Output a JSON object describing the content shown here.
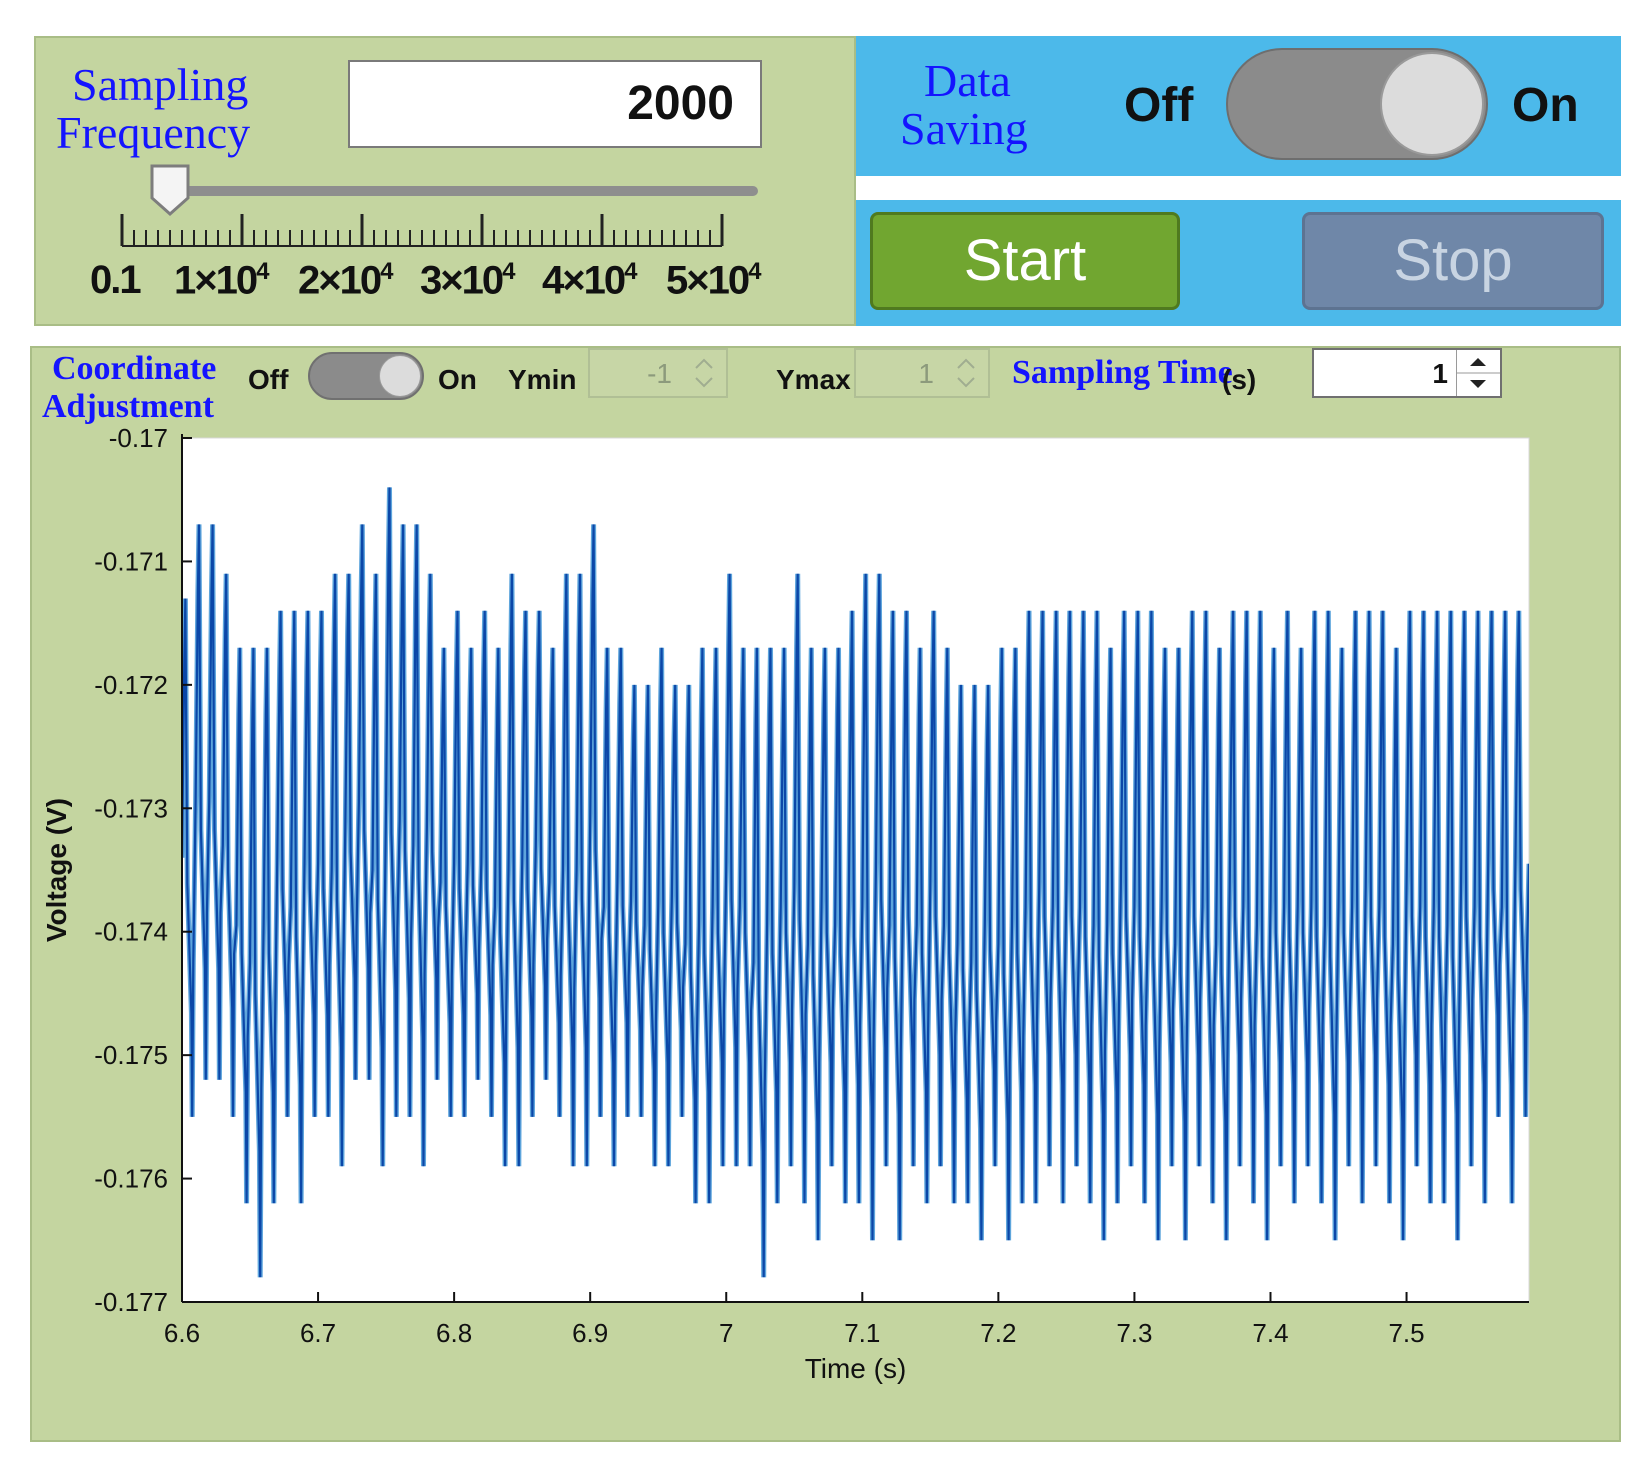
{
  "sampling": {
    "label_line1": "Sampling",
    "label_line2": "Frequency",
    "value": "2000",
    "slider_min": 0.1,
    "slider_max": 50000,
    "slider_value": 2000,
    "tick_labels": [
      {
        "base": "0.1",
        "exp": ""
      },
      {
        "base": "1×10",
        "exp": "4"
      },
      {
        "base": "2×10",
        "exp": "4"
      },
      {
        "base": "3×10",
        "exp": "4"
      },
      {
        "base": "4×10",
        "exp": "4"
      },
      {
        "base": "5×10",
        "exp": "4"
      }
    ]
  },
  "data_saving": {
    "label_line1": "Data",
    "label_line2": "Saving",
    "off_label": "Off",
    "on_label": "On",
    "state": "on"
  },
  "buttons": {
    "start_label": "Start",
    "stop_label": "Stop"
  },
  "coordinate": {
    "label_line1": "Coordinate",
    "label_line2": "Adjustment",
    "off_label": "Off",
    "on_label": "On",
    "state": "on",
    "ymin_label": "Ymin",
    "ymin_value": "-1",
    "ymax_label": "Ymax",
    "ymax_value": "1"
  },
  "sampling_time": {
    "label": "Sampling Time",
    "unit": "(s)",
    "value": "1"
  },
  "colors": {
    "panel_green": "#c4d5a0",
    "panel_blue": "#4cb9ea",
    "label_blue": "#1414ff",
    "start_green": "#71a630",
    "stop_slate": "#6f87a8",
    "trace_dark": "#0b47a8",
    "trace_light": "#4d9bd8"
  },
  "chart_data": {
    "type": "line",
    "xlabel": "Time (s)",
    "ylabel": "Voltage (V)",
    "xlim": [
      6.6,
      7.59
    ],
    "ylim": [
      -0.177,
      -0.17
    ],
    "xticks": [
      6.6,
      6.7,
      6.8,
      6.9,
      7,
      7.1,
      7.2,
      7.3,
      7.4,
      7.5
    ],
    "xtick_labels": [
      "6.6",
      "6.7",
      "6.8",
      "6.9",
      "7",
      "7.1",
      "7.2",
      "7.3",
      "7.4",
      "7.5"
    ],
    "yticks": [
      -0.177,
      -0.176,
      -0.175,
      -0.174,
      -0.173,
      -0.172,
      -0.171,
      -0.17
    ],
    "ytick_labels": [
      "-0.177",
      "-0.176",
      "-0.175",
      "-0.174",
      "-0.173",
      "-0.172",
      "-0.171",
      "-0.17"
    ],
    "grid": false,
    "series": [
      {
        "color": "#0b47a8",
        "x_start": 6.6,
        "x_step": 0.01,
        "peaks": [
          -0.1713,
          -0.1707,
          -0.1707,
          -0.1711,
          -0.1717,
          -0.1717,
          -0.1717,
          -0.1714,
          -0.1714,
          -0.1714,
          -0.1714,
          -0.1711,
          -0.1711,
          -0.1707,
          -0.1711,
          -0.1704,
          -0.1707,
          -0.1707,
          -0.1711,
          -0.1717,
          -0.1714,
          -0.1717,
          -0.1714,
          -0.1717,
          -0.1711,
          -0.1714,
          -0.1714,
          -0.1717,
          -0.1711,
          -0.1711,
          -0.1707,
          -0.1717,
          -0.1717,
          -0.172,
          -0.172,
          -0.1717,
          -0.172,
          -0.172,
          -0.1717,
          -0.1717,
          -0.1711,
          -0.1717,
          -0.1717,
          -0.1717,
          -0.1717,
          -0.1711,
          -0.1717,
          -0.1717,
          -0.1717,
          -0.1714,
          -0.1711,
          -0.1711,
          -0.1714,
          -0.1714,
          -0.1717,
          -0.1714,
          -0.1717,
          -0.172,
          -0.172,
          -0.172,
          -0.1717,
          -0.1717,
          -0.1714,
          -0.1714,
          -0.1714,
          -0.1714,
          -0.1714,
          -0.1714,
          -0.1717,
          -0.1714,
          -0.1714,
          -0.1714,
          -0.1717,
          -0.1717,
          -0.1714,
          -0.1714,
          -0.1717,
          -0.1714,
          -0.1714,
          -0.1714,
          -0.1717,
          -0.1714,
          -0.1717,
          -0.1714,
          -0.1714,
          -0.1717,
          -0.1714,
          -0.1714,
          -0.1714,
          -0.1717,
          -0.1714,
          -0.1714,
          -0.1714,
          -0.1714,
          -0.1714,
          -0.1714,
          -0.1714,
          -0.1714,
          -0.1714
        ],
        "troughs": [
          -0.1755,
          -0.1752,
          -0.1752,
          -0.1755,
          -0.1762,
          -0.1768,
          -0.1762,
          -0.1755,
          -0.1762,
          -0.1755,
          -0.1755,
          -0.1759,
          -0.1752,
          -0.1752,
          -0.1759,
          -0.1755,
          -0.1755,
          -0.1759,
          -0.1752,
          -0.1755,
          -0.1755,
          -0.1752,
          -0.1755,
          -0.1759,
          -0.1759,
          -0.1755,
          -0.1752,
          -0.1755,
          -0.1759,
          -0.1759,
          -0.1755,
          -0.1759,
          -0.1755,
          -0.1755,
          -0.1759,
          -0.1759,
          -0.1755,
          -0.1762,
          -0.1762,
          -0.1759,
          -0.1759,
          -0.1759,
          -0.1768,
          -0.1762,
          -0.1759,
          -0.1762,
          -0.1765,
          -0.1759,
          -0.1762,
          -0.1762,
          -0.1765,
          -0.1759,
          -0.1765,
          -0.1759,
          -0.1762,
          -0.1759,
          -0.1762,
          -0.1762,
          -0.1765,
          -0.1759,
          -0.1765,
          -0.1762,
          -0.1762,
          -0.1759,
          -0.1762,
          -0.1759,
          -0.1762,
          -0.1765,
          -0.1762,
          -0.1759,
          -0.1762,
          -0.1765,
          -0.1759,
          -0.1765,
          -0.1759,
          -0.1762,
          -0.1765,
          -0.1759,
          -0.1762,
          -0.1765,
          -0.1759,
          -0.1762,
          -0.1759,
          -0.1762,
          -0.1765,
          -0.1759,
          -0.1762,
          -0.1759,
          -0.1762,
          -0.1765,
          -0.1759,
          -0.1762,
          -0.1762,
          -0.1765,
          -0.1759,
          -0.1762,
          -0.1755,
          -0.1762,
          -0.1755
        ]
      }
    ]
  }
}
